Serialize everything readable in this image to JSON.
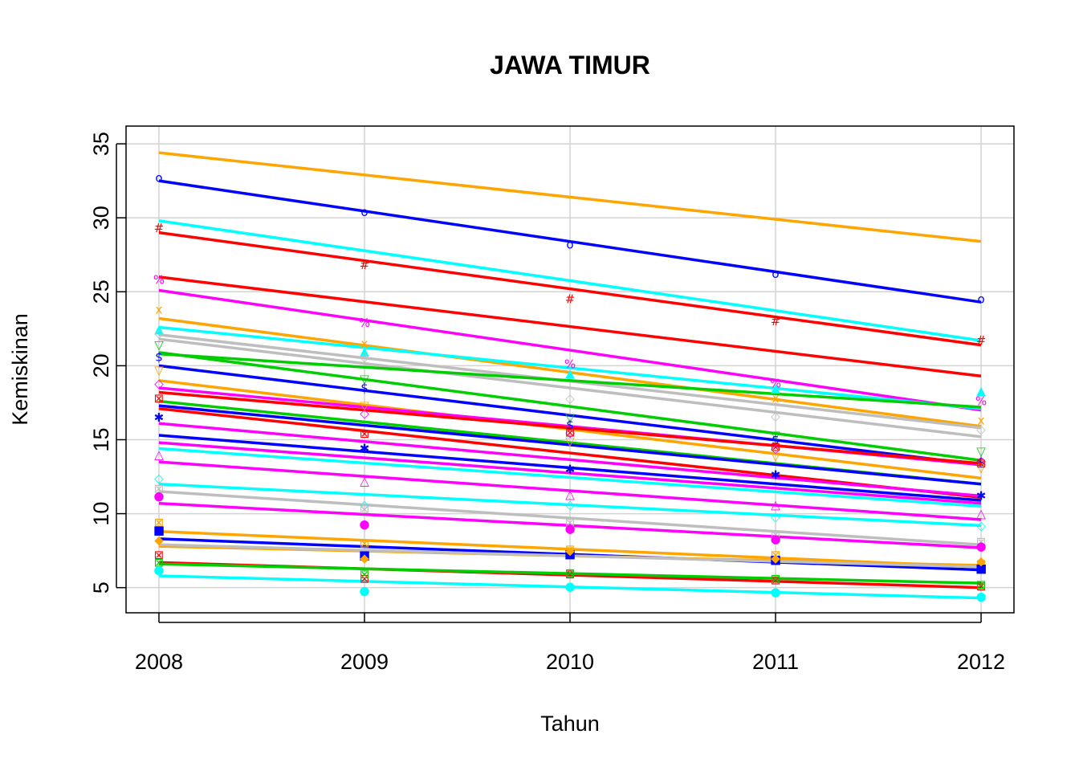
{
  "chart_data": {
    "type": "line",
    "title": "JAWA TIMUR",
    "xlabel": "Tahun",
    "ylabel": "Kemiskinan",
    "x": [
      2008,
      2009,
      2010,
      2011,
      2012
    ],
    "xlim": [
      2007.84,
      2012.16
    ],
    "ylim": [
      3.3,
      36.2
    ],
    "x_ticks": [
      "2008",
      "2009",
      "2010",
      "2011",
      "2012"
    ],
    "y_ticks": [
      "5",
      "10",
      "15",
      "20",
      "25",
      "30",
      "35"
    ],
    "grid": true,
    "legend": "none",
    "series": [
      {
        "color": "#FFA500",
        "marker": "",
        "trend": [
          34.4,
          28.4
        ]
      },
      {
        "color": "#0000FF",
        "marker": "o",
        "values": [
          32.7,
          30.4,
          28.2,
          26.2,
          24.5
        ],
        "trend": [
          32.5,
          24.3
        ]
      },
      {
        "color": "#00FFFF",
        "marker": "",
        "trend": [
          29.8,
          21.7
        ]
      },
      {
        "color": "#FF0000",
        "marker": "#",
        "values": [
          29.3,
          26.8,
          24.5,
          23.0,
          21.7
        ],
        "trend": [
          29.0,
          21.4
        ]
      },
      {
        "color": "#FF0000",
        "marker": "",
        "trend": [
          26.0,
          19.3
        ]
      },
      {
        "color": "#FF00FF",
        "marker": "%",
        "values": [
          25.8,
          22.9,
          20.1,
          18.8,
          17.6
        ],
        "trend": [
          25.1,
          17.0
        ]
      },
      {
        "color": "#FFA500",
        "marker": "x",
        "values": [
          23.8,
          21.5,
          19.4,
          17.8,
          16.3
        ],
        "trend": [
          23.2,
          15.9
        ]
      },
      {
        "color": "#00FFFF",
        "marker": "▲",
        "values": [
          22.5,
          21.0,
          19.5,
          18.5,
          18.3
        ],
        "trend": [
          22.6,
          17.1
        ]
      },
      {
        "color": "#BEBEBE",
        "marker": "◇",
        "values": [
          22.2,
          20.6,
          17.8,
          16.6,
          15.7
        ],
        "trend": [
          22.1,
          15.8
        ]
      },
      {
        "color": "#BEBEBE",
        "marker": "",
        "trend": [
          21.8,
          15.2
        ]
      },
      {
        "color": "#00CD00",
        "marker": "▽",
        "values": [
          21.4,
          19.1,
          16.5,
          15.3,
          14.2
        ],
        "trend": [
          20.9,
          13.6
        ]
      },
      {
        "color": "#00CD00",
        "marker": "",
        "trend": [
          20.8,
          17.2
        ]
      },
      {
        "color": "#0000FF",
        "marker": "$",
        "values": [
          20.6,
          18.5,
          16.0,
          15.0,
          13.5
        ],
        "trend": [
          20.0,
          13.3
        ]
      },
      {
        "color": "#FFA500",
        "marker": "▽",
        "values": [
          19.7,
          17.3,
          14.9,
          13.9,
          13.1
        ],
        "trend": [
          19.0,
          12.4
        ]
      },
      {
        "color": "#FF00FF",
        "marker": "◇",
        "values": [
          18.8,
          16.8,
          15.5,
          14.4,
          13.6
        ],
        "trend": [
          18.5,
          13.3
        ]
      },
      {
        "color": "#FF0000",
        "marker": "⊠",
        "values": [
          17.8,
          15.4,
          15.5,
          14.5,
          13.4
        ],
        "trend": [
          18.2,
          13.4
        ]
      },
      {
        "color": "#00CD00",
        "marker": "",
        "trend": [
          17.6,
          12.0
        ]
      },
      {
        "color": "#0000FF",
        "marker": "",
        "trend": [
          17.3,
          12.0
        ]
      },
      {
        "color": "#FF0000",
        "marker": "",
        "trend": [
          17.1,
          11.1
        ]
      },
      {
        "color": "#0000FF",
        "marker": "✱",
        "values": [
          16.5,
          14.4,
          13.0,
          12.6,
          11.2
        ],
        "trend": [
          15.3,
          10.9
        ]
      },
      {
        "color": "#FF00FF",
        "marker": "",
        "trend": [
          16.1,
          11.2
        ]
      },
      {
        "color": "#FF00FF",
        "marker": "△",
        "values": [
          14.0,
          12.2,
          11.3,
          10.6,
          10.0
        ],
        "trend": [
          14.8,
          10.7
        ]
      },
      {
        "color": "#00FFFF",
        "marker": "",
        "trend": [
          14.4,
          10.5
        ]
      },
      {
        "color": "#FF00FF",
        "marker": "",
        "trend": [
          13.5,
          9.6
        ]
      },
      {
        "color": "#00FFFF",
        "marker": "◇",
        "values": [
          12.4,
          10.6,
          10.6,
          9.8,
          9.2
        ],
        "trend": [
          12.0,
          9.2
        ]
      },
      {
        "color": "#BEBEBE",
        "marker": "⊠",
        "values": [
          11.7,
          10.3,
          9.4,
          8.6,
          8.1
        ],
        "trend": [
          11.5,
          7.9
        ]
      },
      {
        "color": "#FF00FF",
        "marker": "●",
        "values": [
          11.2,
          9.3,
          9.0,
          8.3,
          7.8
        ],
        "trend": [
          10.7,
          7.7
        ]
      },
      {
        "color": "#FFA500",
        "marker": "⊠",
        "values": [
          9.4,
          8.0,
          7.6,
          7.2,
          6.6
        ],
        "trend": [
          8.8,
          6.4
        ]
      },
      {
        "color": "#0000FF",
        "marker": "■",
        "values": [
          8.9,
          7.2,
          7.3,
          6.9,
          6.3
        ],
        "trend": [
          8.3,
          6.2
        ]
      },
      {
        "color": "#FFA500",
        "marker": "◆",
        "values": [
          8.2,
          7.0,
          7.5,
          7.0,
          6.8
        ],
        "trend": [
          7.8,
          6.5
        ]
      },
      {
        "color": "#BEBEBE",
        "marker": "",
        "trend": [
          7.9,
          6.4
        ]
      },
      {
        "color": "#FF0000",
        "marker": "⊠",
        "values": [
          7.2,
          5.6,
          5.9,
          5.5,
          5.1
        ],
        "trend": [
          6.7,
          5.0
        ]
      },
      {
        "color": "#00CD00",
        "marker": "⊠",
        "values": [
          6.7,
          5.9,
          6.0,
          5.6,
          5.2
        ],
        "trend": [
          6.6,
          5.3
        ]
      },
      {
        "color": "#00FFFF",
        "marker": "●",
        "values": [
          6.2,
          4.8,
          5.1,
          4.7,
          4.4
        ],
        "trend": [
          5.8,
          4.3
        ]
      }
    ]
  }
}
